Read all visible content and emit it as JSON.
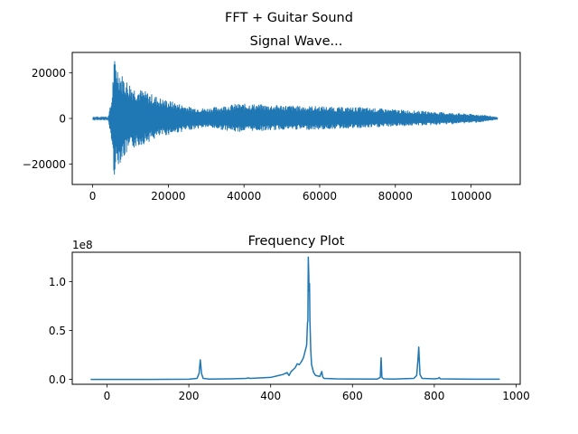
{
  "figure": {
    "suptitle": "FFT + Guitar Sound",
    "line_color": "#1f77b4"
  },
  "chart_data": [
    {
      "type": "line",
      "title": "Signal Wave...",
      "xlabel": "",
      "ylabel": "",
      "xlim": [
        -5400,
        113000
      ],
      "ylim": [
        -29000,
        29000
      ],
      "xticks": [
        0,
        20000,
        40000,
        60000,
        80000,
        100000
      ],
      "xtick_labels": [
        "0",
        "20000",
        "40000",
        "60000",
        "80000",
        "100000"
      ],
      "yticks": [
        -20000,
        0,
        20000
      ],
      "ytick_labels": [
        "−20000",
        "0",
        "20000"
      ],
      "grid": false,
      "legend": "none",
      "envelope": {
        "x": [
          0,
          4000,
          5000,
          5600,
          6000,
          6500,
          7500,
          9000,
          11000,
          14000,
          18000,
          22000,
          26000,
          30000,
          34000,
          38000,
          42000,
          46000,
          50000,
          55000,
          60000,
          65000,
          70000,
          75000,
          80000,
          85000,
          90000,
          95000,
          100000,
          104000,
          107000
        ],
        "upper": [
          300,
          300,
          8000,
          25000,
          27000,
          24000,
          20000,
          17000,
          14000,
          12000,
          9000,
          7000,
          5000,
          4500,
          5500,
          6500,
          6500,
          6000,
          6000,
          5500,
          5500,
          5000,
          5000,
          4500,
          4000,
          3500,
          3000,
          2500,
          2000,
          1500,
          500
        ],
        "lower": [
          -300,
          -300,
          -10000,
          -26000,
          -23000,
          -21000,
          -19000,
          -16000,
          -13000,
          -11000,
          -8000,
          -6500,
          -5000,
          -4000,
          -5000,
          -6000,
          -5500,
          -5500,
          -5000,
          -5000,
          -5000,
          -4500,
          -4500,
          -4000,
          -3500,
          -3200,
          -3000,
          -2500,
          -2000,
          -1500,
          -500
        ]
      }
    },
    {
      "type": "line",
      "title": "Frequency Plot",
      "xlabel": "",
      "ylabel": "",
      "offset_text": "1e8",
      "xlim": [
        -85,
        1010
      ],
      "ylim": [
        -0.05,
        1.3
      ],
      "xticks": [
        0,
        200,
        400,
        600,
        800,
        1000
      ],
      "xtick_labels": [
        "0",
        "200",
        "400",
        "600",
        "800",
        "1000"
      ],
      "yticks": [
        0.0,
        0.5,
        1.0
      ],
      "ytick_labels": [
        "0.0",
        "0.5",
        "1.0"
      ],
      "grid": false,
      "legend": "none",
      "x": [
        -40,
        100,
        200,
        220,
        225,
        228,
        231,
        235,
        250,
        300,
        340,
        345,
        350,
        400,
        420,
        430,
        440,
        445,
        450,
        460,
        465,
        470,
        475,
        480,
        485,
        488,
        490,
        491,
        492,
        493,
        494,
        495,
        496,
        498,
        500,
        505,
        510,
        520,
        525,
        527,
        530,
        560,
        660,
        668,
        670,
        672,
        676,
        700,
        750,
        757,
        760,
        762,
        765,
        770,
        800,
        810,
        812,
        815,
        900,
        960
      ],
      "y": [
        0.0,
        0.0,
        0.002,
        0.01,
        0.06,
        0.2,
        0.06,
        0.01,
        0.003,
        0.005,
        0.01,
        0.015,
        0.01,
        0.02,
        0.04,
        0.05,
        0.07,
        0.04,
        0.08,
        0.12,
        0.16,
        0.15,
        0.18,
        0.22,
        0.3,
        0.35,
        0.58,
        0.6,
        1.25,
        1.1,
        0.9,
        0.98,
        0.6,
        0.3,
        0.15,
        0.07,
        0.04,
        0.03,
        0.08,
        0.03,
        0.01,
        0.005,
        0.003,
        0.02,
        0.22,
        0.02,
        0.005,
        0.003,
        0.01,
        0.04,
        0.2,
        0.33,
        0.05,
        0.01,
        0.005,
        0.01,
        0.02,
        0.005,
        0.002,
        0.002
      ]
    }
  ]
}
